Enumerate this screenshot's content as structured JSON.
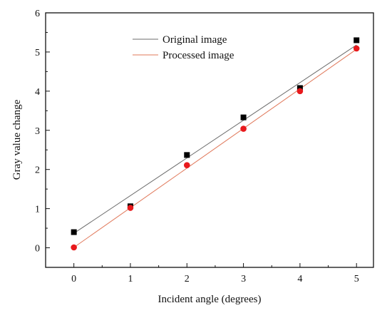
{
  "chart_data": {
    "type": "scatter",
    "xlabel": "Incident angle (degrees)",
    "ylabel": "Gray value change",
    "xlim": [
      -0.5,
      5.3
    ],
    "ylim": [
      -0.5,
      6
    ],
    "xticks": [
      0,
      1,
      2,
      3,
      4,
      5
    ],
    "yticks": [
      0,
      1,
      2,
      3,
      4,
      5,
      6
    ],
    "legend_position": "top-center",
    "grid": false,
    "series": [
      {
        "name": "Original image",
        "marker": "square",
        "marker_color": "#000000",
        "line_color": "#6b6b6b",
        "x": [
          0,
          1,
          2,
          3,
          4,
          5
        ],
        "y": [
          0.4,
          1.06,
          2.37,
          3.33,
          4.08,
          5.3
        ],
        "fit": {
          "x": [
            0,
            5
          ],
          "y": [
            0.37,
            5.18
          ]
        }
      },
      {
        "name": "Processed image",
        "marker": "circle",
        "marker_color": "#e8191c",
        "line_color": "#e0785a",
        "x": [
          0,
          1,
          2,
          3,
          4,
          5
        ],
        "y": [
          0.01,
          1.02,
          2.11,
          3.04,
          4.0,
          5.09
        ],
        "fit": {
          "x": [
            0,
            5
          ],
          "y": [
            0.01,
            5.07
          ]
        }
      }
    ]
  }
}
